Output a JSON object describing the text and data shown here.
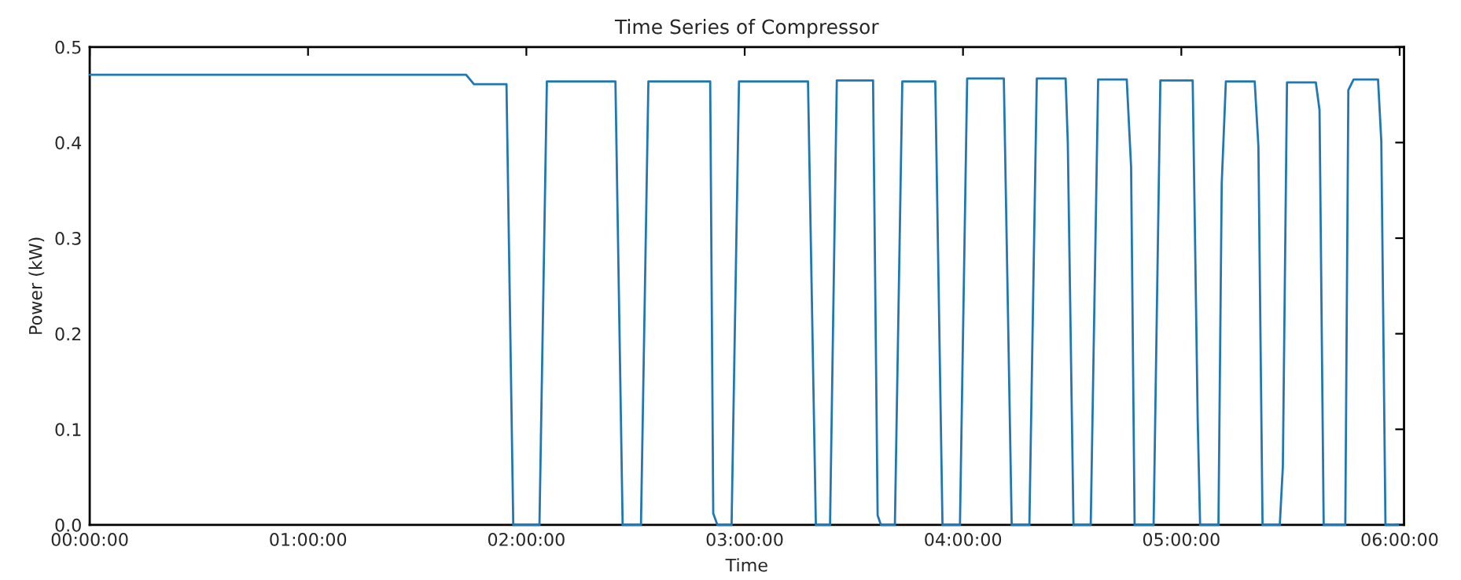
{
  "chart_data": {
    "type": "line",
    "title": "Time Series of Compressor",
    "xlabel": "Time",
    "ylabel": "Power (kW)",
    "series": [
      {
        "color": "#1f77b4",
        "x": [
          0,
          1.724,
          1.76,
          1.909,
          1.94,
          2.06,
          2.094,
          2.408,
          2.441,
          2.525,
          2.559,
          2.842,
          2.856,
          2.875,
          2.94,
          2.974,
          3.29,
          3.326,
          3.391,
          3.422,
          3.588,
          3.609,
          3.624,
          3.688,
          3.722,
          3.873,
          3.906,
          3.986,
          4.019,
          4.187,
          4.223,
          4.304,
          4.338,
          4.47,
          4.48,
          4.506,
          4.585,
          4.619,
          4.75,
          4.77,
          4.786,
          4.873,
          4.904,
          5.052,
          5.075,
          5.086,
          5.17,
          5.185,
          5.204,
          5.336,
          5.353,
          5.372,
          5.451,
          5.465,
          5.484,
          5.616,
          5.633,
          5.652,
          5.751,
          5.765,
          5.789,
          5.901,
          5.916,
          5.935,
          5.993
        ],
        "values": [
          0.471,
          0.471,
          0.461,
          0.461,
          0,
          0,
          0.464,
          0.464,
          0,
          0,
          0.464,
          0.464,
          0.012,
          0,
          0,
          0.464,
          0.464,
          0,
          0,
          0.465,
          0.465,
          0.01,
          0,
          0,
          0.464,
          0.464,
          0,
          0,
          0.467,
          0.467,
          0,
          0,
          0.467,
          0.467,
          0.4,
          0,
          0,
          0.466,
          0.466,
          0.374,
          0,
          0,
          0.465,
          0.465,
          0.11,
          0,
          0,
          0.357,
          0.464,
          0.464,
          0.396,
          0,
          0,
          0.061,
          0.463,
          0.463,
          0.434,
          0,
          0,
          0.455,
          0.466,
          0.466,
          0.401,
          0,
          0
        ]
      }
    ],
    "xlim": [
      0,
      6.02
    ],
    "ylim": [
      0,
      0.5
    ],
    "xticks": [
      {
        "value": 0,
        "label": "00:00:00"
      },
      {
        "value": 1,
        "label": "01:00:00"
      },
      {
        "value": 2,
        "label": "02:00:00"
      },
      {
        "value": 3,
        "label": "03:00:00"
      },
      {
        "value": 4,
        "label": "04:00:00"
      },
      {
        "value": 5,
        "label": "05:00:00"
      },
      {
        "value": 6,
        "label": "06:00:00"
      }
    ],
    "yticks": [
      {
        "value": 0,
        "label": "0.0"
      },
      0.1,
      0.2,
      0.3,
      0.4,
      0.5
    ],
    "grid": false,
    "legend": false
  }
}
